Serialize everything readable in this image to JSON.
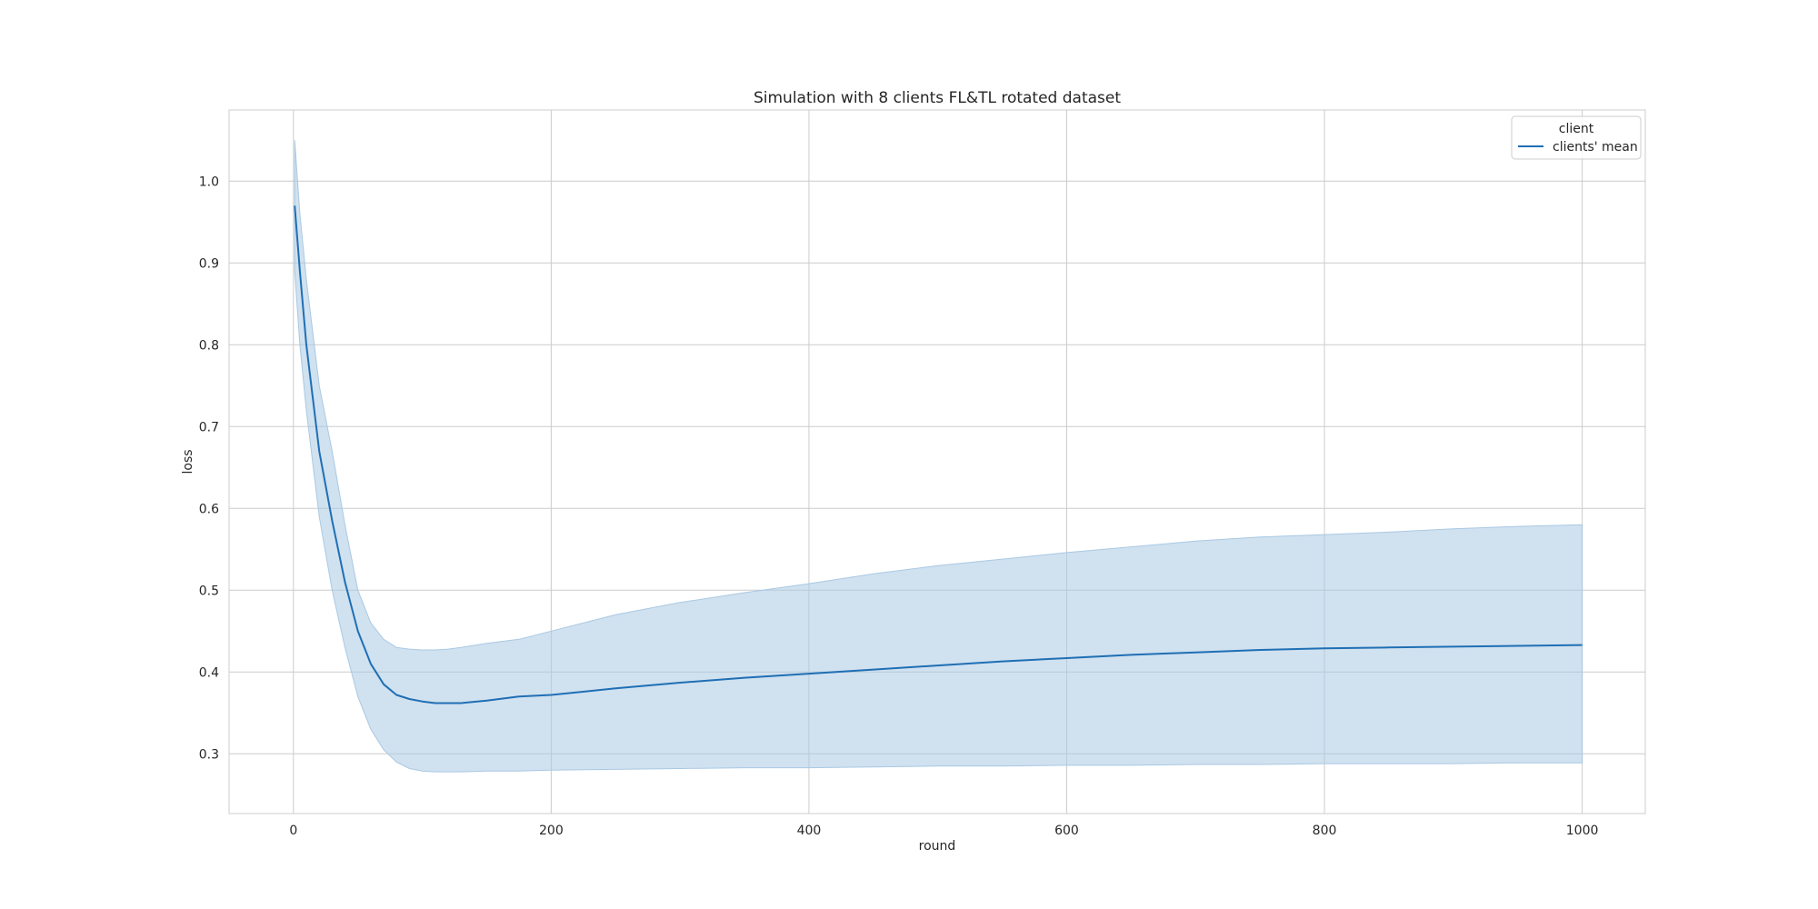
{
  "chart_data": {
    "type": "line",
    "title": "Simulation with 8 clients FL&TL rotated dataset",
    "xlabel": "round",
    "ylabel": "loss",
    "xlim": [
      -49.95,
      1048.95
    ],
    "ylim": [
      0.227,
      1.087
    ],
    "x_ticks": [
      0,
      200,
      400,
      600,
      800,
      1000
    ],
    "y_ticks": [
      0.3,
      0.4,
      0.5,
      0.6,
      0.7,
      0.8,
      0.9,
      1.0
    ],
    "grid": true,
    "legend": {
      "title": "client",
      "placement": "top-right"
    },
    "series": [
      {
        "name": "clients' mean",
        "color": "#1f6fb4",
        "band_color": "#a9c9e3",
        "x": [
          1,
          5,
          10,
          20,
          30,
          40,
          50,
          60,
          70,
          80,
          90,
          100,
          110,
          120,
          130,
          150,
          175,
          200,
          250,
          300,
          350,
          400,
          450,
          500,
          550,
          600,
          650,
          700,
          750,
          800,
          850,
          900,
          950,
          1000
        ],
        "mean": [
          0.97,
          0.89,
          0.8,
          0.67,
          0.585,
          0.51,
          0.45,
          0.41,
          0.385,
          0.372,
          0.367,
          0.364,
          0.362,
          0.362,
          0.362,
          0.365,
          0.37,
          0.372,
          0.38,
          0.387,
          0.393,
          0.398,
          0.403,
          0.408,
          0.413,
          0.417,
          0.421,
          0.424,
          0.427,
          0.429,
          0.43,
          0.431,
          0.432,
          0.433
        ],
        "upper": [
          1.05,
          0.96,
          0.88,
          0.75,
          0.67,
          0.58,
          0.5,
          0.46,
          0.44,
          0.43,
          0.428,
          0.427,
          0.427,
          0.428,
          0.43,
          0.435,
          0.44,
          0.45,
          0.47,
          0.485,
          0.497,
          0.508,
          0.52,
          0.53,
          0.538,
          0.546,
          0.553,
          0.56,
          0.565,
          0.568,
          0.571,
          0.575,
          0.578,
          0.58
        ],
        "lower": [
          0.89,
          0.8,
          0.72,
          0.59,
          0.5,
          0.43,
          0.37,
          0.33,
          0.305,
          0.29,
          0.282,
          0.279,
          0.278,
          0.278,
          0.278,
          0.279,
          0.279,
          0.28,
          0.281,
          0.282,
          0.283,
          0.283,
          0.284,
          0.285,
          0.285,
          0.286,
          0.286,
          0.287,
          0.287,
          0.288,
          0.288,
          0.288,
          0.289,
          0.289
        ]
      }
    ]
  }
}
